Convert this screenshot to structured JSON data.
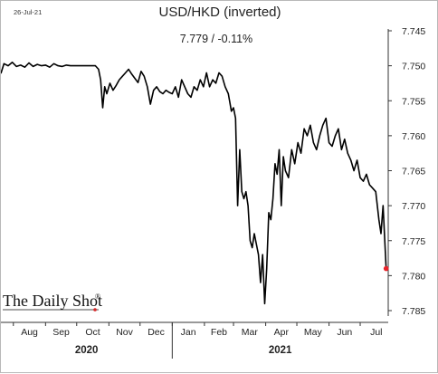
{
  "header": {
    "date": "26-Jul-21",
    "title": "USD/HKD (inverted)",
    "subtitle": "7.779  /  -0.11%"
  },
  "watermark": {
    "text": "The Daily Shot",
    "mark": "®",
    "color": "#d62728"
  },
  "colors": {
    "line": "#000000",
    "last_point": "#e8232a",
    "axis": "#333333"
  },
  "chart_data": {
    "type": "line",
    "title": "USD/HKD (inverted)",
    "subtitle": "7.779  /  -0.11%",
    "y_inverted": true,
    "ylim": [
      7.745,
      7.785
    ],
    "yticks": [
      "7.745",
      "7.750",
      "7.755",
      "7.760",
      "7.765",
      "7.770",
      "7.775",
      "7.780",
      "7.785"
    ],
    "xlim": [
      "2020-07-20",
      "2021-07-28"
    ],
    "months": [
      "Aug",
      "Sep",
      "Oct",
      "Nov",
      "Dec",
      "Jan",
      "Feb",
      "Mar",
      "Apr",
      "May",
      "Jun",
      "Jul"
    ],
    "years": [
      "2020",
      "2021"
    ],
    "grid": false,
    "legend": "none",
    "last_value": {
      "x": "2021-07-26",
      "y": 7.779
    },
    "series": [
      {
        "x": [
          "2020-07-20",
          "2020-07-23",
          "2020-07-27",
          "2020-07-31",
          "2020-08-04",
          "2020-08-08",
          "2020-08-12",
          "2020-08-16",
          "2020-08-20",
          "2020-08-24",
          "2020-08-28",
          "2020-09-01",
          "2020-09-05",
          "2020-09-09",
          "2020-09-13",
          "2020-09-17",
          "2020-09-21",
          "2020-09-25",
          "2020-09-29",
          "2020-10-03",
          "2020-10-07",
          "2020-10-11",
          "2020-10-15",
          "2020-10-19",
          "2020-10-22",
          "2020-10-24",
          "2020-10-26",
          "2020-10-28",
          "2020-10-30",
          "2020-11-02",
          "2020-11-05",
          "2020-11-08",
          "2020-11-11",
          "2020-11-14",
          "2020-11-17",
          "2020-11-20",
          "2020-11-23",
          "2020-11-26",
          "2020-11-29",
          "2020-12-02",
          "2020-12-05",
          "2020-12-08",
          "2020-12-11",
          "2020-12-14",
          "2020-12-17",
          "2020-12-20",
          "2020-12-23",
          "2020-12-26",
          "2020-12-29",
          "2021-01-01",
          "2021-01-04",
          "2021-01-07",
          "2021-01-10",
          "2021-01-13",
          "2021-01-16",
          "2021-01-19",
          "2021-01-22",
          "2021-01-25",
          "2021-01-28",
          "2021-01-31",
          "2021-02-03",
          "2021-02-06",
          "2021-02-09",
          "2021-02-12",
          "2021-02-15",
          "2021-02-18",
          "2021-02-21",
          "2021-02-24",
          "2021-02-27",
          "2021-03-01",
          "2021-03-03",
          "2021-03-05",
          "2021-03-07",
          "2021-03-09",
          "2021-03-11",
          "2021-03-13",
          "2021-03-15",
          "2021-03-17",
          "2021-03-19",
          "2021-03-21",
          "2021-03-23",
          "2021-03-25",
          "2021-03-27",
          "2021-03-29",
          "2021-03-31",
          "2021-04-02",
          "2021-04-04",
          "2021-04-06",
          "2021-04-08",
          "2021-04-10",
          "2021-04-12",
          "2021-04-14",
          "2021-04-16",
          "2021-04-18",
          "2021-04-20",
          "2021-04-23",
          "2021-04-26",
          "2021-04-29",
          "2021-05-02",
          "2021-05-05",
          "2021-05-08",
          "2021-05-11",
          "2021-05-14",
          "2021-05-17",
          "2021-05-20",
          "2021-05-23",
          "2021-05-26",
          "2021-05-29",
          "2021-06-01",
          "2021-06-04",
          "2021-06-07",
          "2021-06-10",
          "2021-06-13",
          "2021-06-16",
          "2021-06-19",
          "2021-06-22",
          "2021-06-25",
          "2021-06-28",
          "2021-07-01",
          "2021-07-04",
          "2021-07-07",
          "2021-07-10",
          "2021-07-13",
          "2021-07-16",
          "2021-07-19",
          "2021-07-21",
          "2021-07-23",
          "2021-07-26"
        ],
        "values": [
          7.7511,
          7.7497,
          7.75,
          7.7495,
          7.7501,
          7.7499,
          7.7502,
          7.7496,
          7.7501,
          7.7498,
          7.75,
          7.7499,
          7.7502,
          7.7497,
          7.75,
          7.7501,
          7.7499,
          7.75,
          7.75,
          7.75,
          7.75,
          7.75,
          7.75,
          7.75,
          7.7505,
          7.752,
          7.756,
          7.753,
          7.754,
          7.7525,
          7.7535,
          7.7528,
          7.752,
          7.7515,
          7.751,
          7.7505,
          7.7512,
          7.7518,
          7.7524,
          7.7508,
          7.7515,
          7.753,
          7.7555,
          7.7535,
          7.753,
          7.7537,
          7.754,
          7.7535,
          7.7538,
          7.754,
          7.753,
          7.7545,
          7.752,
          7.753,
          7.754,
          7.7545,
          7.753,
          7.7535,
          7.752,
          7.753,
          7.751,
          7.753,
          7.752,
          7.7525,
          7.751,
          7.7515,
          7.753,
          7.754,
          7.7565,
          7.756,
          7.7575,
          7.77,
          7.762,
          7.768,
          7.769,
          7.768,
          7.77,
          7.775,
          7.776,
          7.774,
          7.7755,
          7.777,
          7.781,
          7.777,
          7.784,
          7.779,
          7.771,
          7.772,
          7.769,
          7.764,
          7.7655,
          7.762,
          7.77,
          7.763,
          7.765,
          7.766,
          7.762,
          7.764,
          7.761,
          7.7625,
          7.759,
          7.76,
          7.7585,
          7.761,
          7.762,
          7.76,
          7.7585,
          7.7575,
          7.761,
          7.7615,
          7.76,
          7.759,
          7.762,
          7.7605,
          7.7625,
          7.7635,
          7.765,
          7.7635,
          7.766,
          7.7665,
          7.7655,
          7.767,
          7.7675,
          7.768,
          7.772,
          7.774,
          7.77,
          7.779
        ]
      }
    ]
  }
}
